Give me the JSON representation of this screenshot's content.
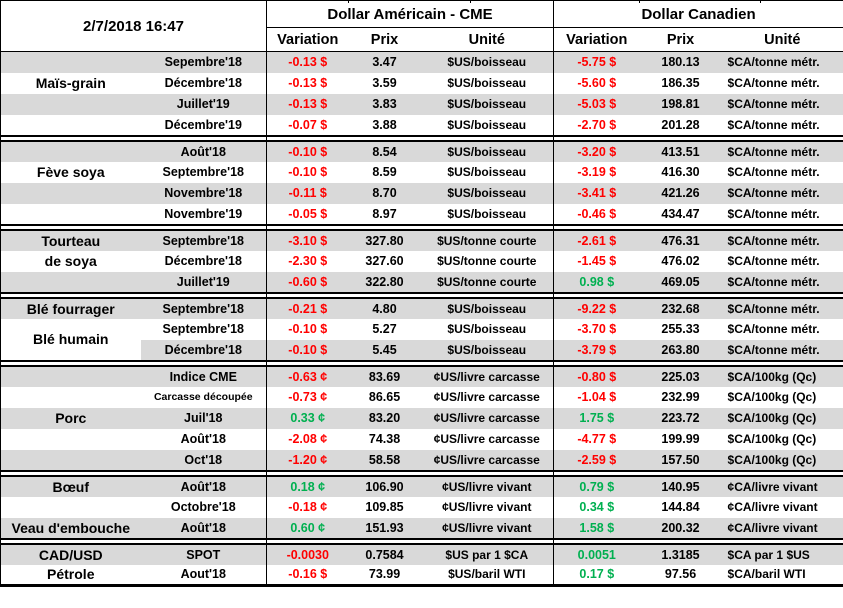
{
  "header": {
    "datetime": "2/7/2018 16:47",
    "us_title": "Dollar Américain - CME",
    "ca_title": "Dollar Canadien",
    "variation": "Variation",
    "prix": "Prix",
    "unite": "Unité"
  },
  "colors": {
    "row_gray": "#D9D9D9",
    "negative": "#FF0000",
    "positive": "#00B050"
  },
  "groups": [
    {
      "commodity": "Maïs-grain",
      "rows": [
        {
          "label": "",
          "month": "Sepembre'18",
          "us_variation": "-0.13 $",
          "us_prix": "3.47",
          "us_unite": "$US/boisseau",
          "ca_variation": "-5.75 $",
          "ca_prix": "180.13",
          "ca_unite": "$CA/tonne métr."
        },
        {
          "label": "Maïs-grain",
          "month": "Décembre'18",
          "us_variation": "-0.13 $",
          "us_prix": "3.59",
          "us_unite": "$US/boisseau",
          "ca_variation": "-5.60 $",
          "ca_prix": "186.35",
          "ca_unite": "$CA/tonne métr."
        },
        {
          "label": "",
          "month": "Juillet'19",
          "us_variation": "-0.13 $",
          "us_prix": "3.83",
          "us_unite": "$US/boisseau",
          "ca_variation": "-5.03 $",
          "ca_prix": "198.81",
          "ca_unite": "$CA/tonne métr."
        },
        {
          "label": "",
          "month": "Décembre'19",
          "us_variation": "-0.07 $",
          "us_prix": "3.88",
          "us_unite": "$US/boisseau",
          "ca_variation": "-2.70 $",
          "ca_prix": "201.28",
          "ca_unite": "$CA/tonne métr."
        }
      ]
    },
    {
      "commodity": "Fève soya",
      "rows": [
        {
          "label": "",
          "month": "Août'18",
          "us_variation": "-0.10 $",
          "us_prix": "8.54",
          "us_unite": "$US/boisseau",
          "ca_variation": "-3.20 $",
          "ca_prix": "413.51",
          "ca_unite": "$CA/tonne métr."
        },
        {
          "label": "Fève soya",
          "month": "Septembre'18",
          "us_variation": "-0.10 $",
          "us_prix": "8.59",
          "us_unite": "$US/boisseau",
          "ca_variation": "-3.19 $",
          "ca_prix": "416.30",
          "ca_unite": "$CA/tonne métr."
        },
        {
          "label": "",
          "month": "Novembre'18",
          "us_variation": "-0.11 $",
          "us_prix": "8.70",
          "us_unite": "$US/boisseau",
          "ca_variation": "-3.41 $",
          "ca_prix": "421.26",
          "ca_unite": "$CA/tonne métr."
        },
        {
          "label": "",
          "month": "Novembre'19",
          "us_variation": "-0.05 $",
          "us_prix": "8.97",
          "us_unite": "$US/boisseau",
          "ca_variation": "-0.46 $",
          "ca_prix": "434.47",
          "ca_unite": "$CA/tonne métr."
        }
      ]
    },
    {
      "commodity": "Tourteau de soya",
      "rows": [
        {
          "label": "Tourteau",
          "month": "Septembre'18",
          "us_variation": "-3.10 $",
          "us_prix": "327.80",
          "us_unite": "$US/tonne courte",
          "ca_variation": "-2.61 $",
          "ca_prix": "476.31",
          "ca_unite": "$CA/tonne métr."
        },
        {
          "label": "de soya",
          "month": "Décembre'18",
          "us_variation": "-2.30 $",
          "us_prix": "327.60",
          "us_unite": "$US/tonne courte",
          "ca_variation": "-1.45 $",
          "ca_prix": "476.02",
          "ca_unite": "$CA/tonne métr."
        },
        {
          "label": "",
          "month": "Juillet'19",
          "us_variation": "-0.60 $",
          "us_prix": "322.80",
          "us_unite": "$US/tonne courte",
          "ca_variation": "0.98 $",
          "ca_prix": "469.05",
          "ca_unite": "$CA/tonne métr."
        }
      ]
    },
    {
      "commodity": "Blé fourrager / Blé humain",
      "rows": [
        {
          "label": "Blé fourrager",
          "month": "Septembre'18",
          "us_variation": "-0.21 $",
          "us_prix": "4.80",
          "us_unite": "$US/boisseau",
          "ca_variation": "-9.22 $",
          "ca_prix": "232.68",
          "ca_unite": "$CA/tonne métr."
        },
        {
          "label": "Blé humain",
          "label_rowspan": 2,
          "label_white": true,
          "month": "Septembre'18",
          "us_variation": "-0.10 $",
          "us_prix": "5.27",
          "us_unite": "$US/boisseau",
          "ca_variation": "-3.70 $",
          "ca_prix": "255.33",
          "ca_unite": "$CA/tonne métr."
        },
        {
          "label": "",
          "skip_label": true,
          "month": "Décembre'18",
          "us_variation": "-0.10 $",
          "us_prix": "5.45",
          "us_unite": "$US/boisseau",
          "ca_variation": "-3.79 $",
          "ca_prix": "263.80",
          "ca_unite": "$CA/tonne métr."
        }
      ]
    },
    {
      "commodity": "Porc",
      "rows": [
        {
          "label": "",
          "month": "Indice CME",
          "us_variation": "-0.63 ¢",
          "us_prix": "83.69",
          "us_unite": "¢US/livre carcasse",
          "ca_variation": "-0.80 $",
          "ca_prix": "225.03",
          "ca_unite": "$CA/100kg (Qc)"
        },
        {
          "label": "",
          "month": "Carcasse découpée",
          "us_variation": "-0.73 ¢",
          "us_prix": "86.65",
          "us_unite": "¢US/livre carcasse",
          "ca_variation": "-1.04 $",
          "ca_prix": "232.99",
          "ca_unite": "$CA/100kg (Qc)"
        },
        {
          "label": "Porc",
          "month": "Juil'18",
          "us_variation": "0.33 ¢",
          "us_prix": "83.20",
          "us_unite": "¢US/livre carcasse",
          "ca_variation": "1.75 $",
          "ca_prix": "223.72",
          "ca_unite": "$CA/100kg (Qc)"
        },
        {
          "label": "",
          "month": "Août'18",
          "us_variation": "-2.08 ¢",
          "us_prix": "74.38",
          "us_unite": "¢US/livre carcasse",
          "ca_variation": "-4.77 $",
          "ca_prix": "199.99",
          "ca_unite": "$CA/100kg (Qc)"
        },
        {
          "label": "",
          "month": "Oct'18",
          "us_variation": "-1.20 ¢",
          "us_prix": "58.58",
          "us_unite": "¢US/livre carcasse",
          "ca_variation": "-2.59 $",
          "ca_prix": "157.50",
          "ca_unite": "$CA/100kg (Qc)"
        }
      ]
    },
    {
      "commodity": "Bœuf / Veau d'embouche",
      "rows": [
        {
          "label": "Bœuf",
          "month": "Août'18",
          "us_variation": "0.18 ¢",
          "us_prix": "106.90",
          "us_unite": "¢US/livre vivant",
          "ca_variation": "0.79 $",
          "ca_prix": "140.95",
          "ca_unite": "¢CA/livre vivant"
        },
        {
          "label": "",
          "month": "Octobre'18",
          "us_variation": "-0.18 ¢",
          "us_prix": "109.85",
          "us_unite": "¢US/livre vivant",
          "ca_variation": "0.34 $",
          "ca_prix": "144.84",
          "ca_unite": "¢CA/livre vivant"
        },
        {
          "label": "Veau d'embouche",
          "month": "Août'18",
          "us_variation": "0.60 ¢",
          "us_prix": "151.93",
          "us_unite": "¢US/livre vivant",
          "ca_variation": "1.58 $",
          "ca_prix": "200.32",
          "ca_unite": "¢CA/livre vivant"
        }
      ]
    },
    {
      "commodity": "CAD/USD / Pétrole",
      "rows": [
        {
          "label": "CAD/USD",
          "month": "SPOT",
          "us_variation": "-0.0030",
          "us_prix": "0.7584",
          "us_unite": "$US par 1 $CA",
          "ca_variation": "0.0051",
          "ca_prix": "1.3185",
          "ca_unite": "$CA par 1 $US"
        },
        {
          "label": "Pétrole",
          "month": "Aout'18",
          "us_variation": "-0.16 $",
          "us_prix": "73.99",
          "us_unite": "$US/baril WTI",
          "ca_variation": "0.17 $",
          "ca_prix": "97.56",
          "ca_unite": "$CA/baril WTI"
        }
      ]
    }
  ]
}
